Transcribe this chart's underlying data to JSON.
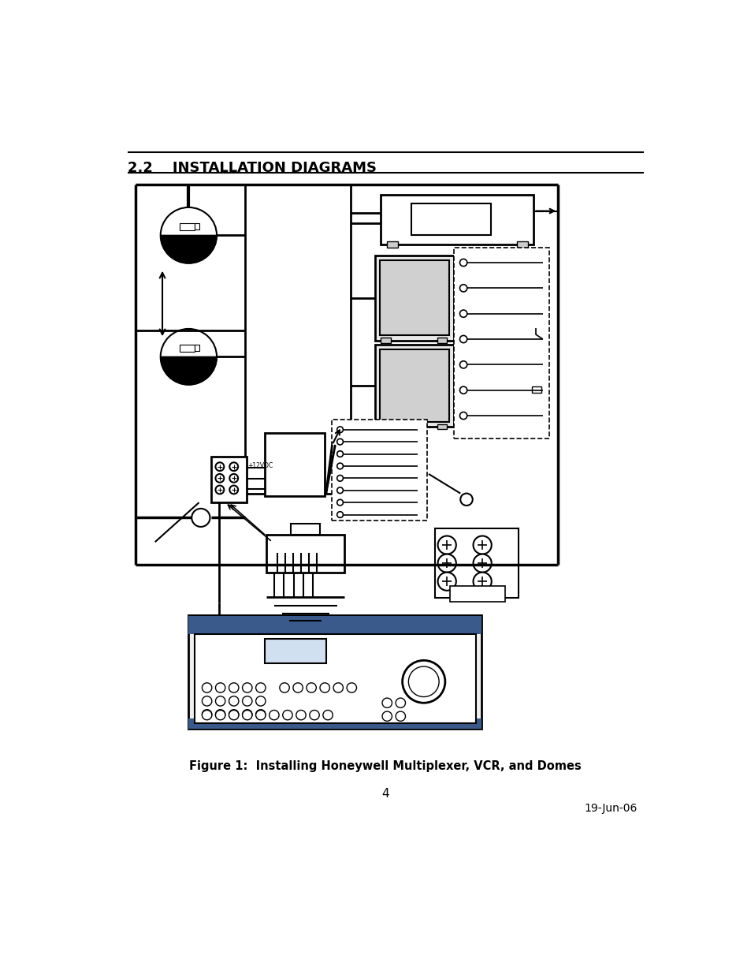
{
  "title": "2.2    INSTALLATION DIAGRAMS",
  "figure_caption": "Figure 1:  Installing Honeywell Multiplexer, VCR, and Domes",
  "page_number": "4",
  "date_stamp": "19-Jun-06",
  "bg_color": "#ffffff",
  "line_color": "#000000"
}
